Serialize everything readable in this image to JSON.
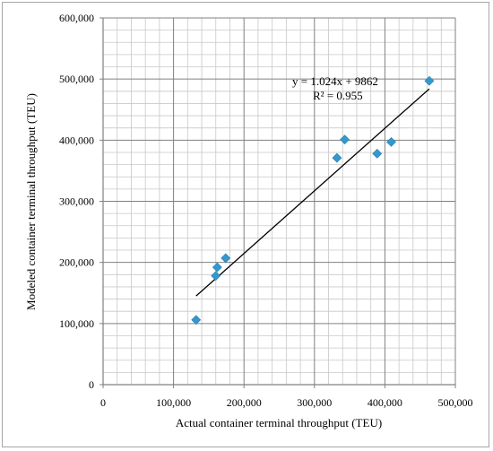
{
  "chart_data": {
    "type": "scatter",
    "title": "",
    "xlabel": "Actual container terminal throughput (TEU)",
    "ylabel": "Modeled container terminal throughput (TEU)",
    "xlim": [
      0,
      500000
    ],
    "ylim": [
      0,
      600000
    ],
    "x_ticks": [
      "0",
      "100,000",
      "200,000",
      "300,000",
      "400,000",
      "500,000"
    ],
    "y_ticks": [
      "0",
      "100,000",
      "200,000",
      "300,000",
      "400,000",
      "500,000",
      "600,000"
    ],
    "grid": true,
    "minor_grid": true,
    "points": [
      {
        "x": 132000,
        "y": 106000
      },
      {
        "x": 160000,
        "y": 178000
      },
      {
        "x": 162000,
        "y": 192000
      },
      {
        "x": 174000,
        "y": 207000
      },
      {
        "x": 332000,
        "y": 371000
      },
      {
        "x": 343000,
        "y": 401000
      },
      {
        "x": 389000,
        "y": 378000
      },
      {
        "x": 409000,
        "y": 397000
      },
      {
        "x": 463000,
        "y": 497000
      }
    ],
    "trendline": {
      "slope": 1.024,
      "intercept": 9862,
      "x_range": [
        132000,
        463000
      ],
      "equation": "y = 1.024x + 9862",
      "r_squared": "R² = 0.955"
    },
    "marker_color": "#3399CC",
    "line_color": "#000000",
    "grid_color": "#808080"
  }
}
